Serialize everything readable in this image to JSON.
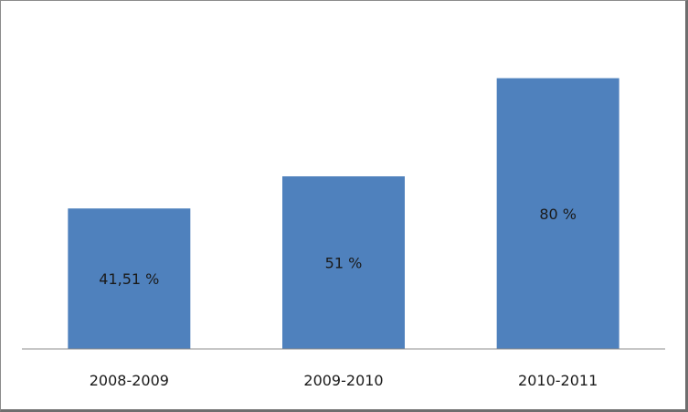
{
  "chart_data": {
    "type": "bar",
    "title": "",
    "xlabel": "",
    "ylabel": "",
    "categories": [
      "2008-2009",
      "2009-2010",
      "2010-2011"
    ],
    "values": [
      41.51,
      51,
      80
    ],
    "data_labels": [
      "41,51 %",
      "51 %",
      "80 %"
    ],
    "ylim": [
      0,
      95
    ],
    "grid": false,
    "legend": "none",
    "bar_color": "#4f81bd",
    "axis_color": "#8c8c8c"
  }
}
